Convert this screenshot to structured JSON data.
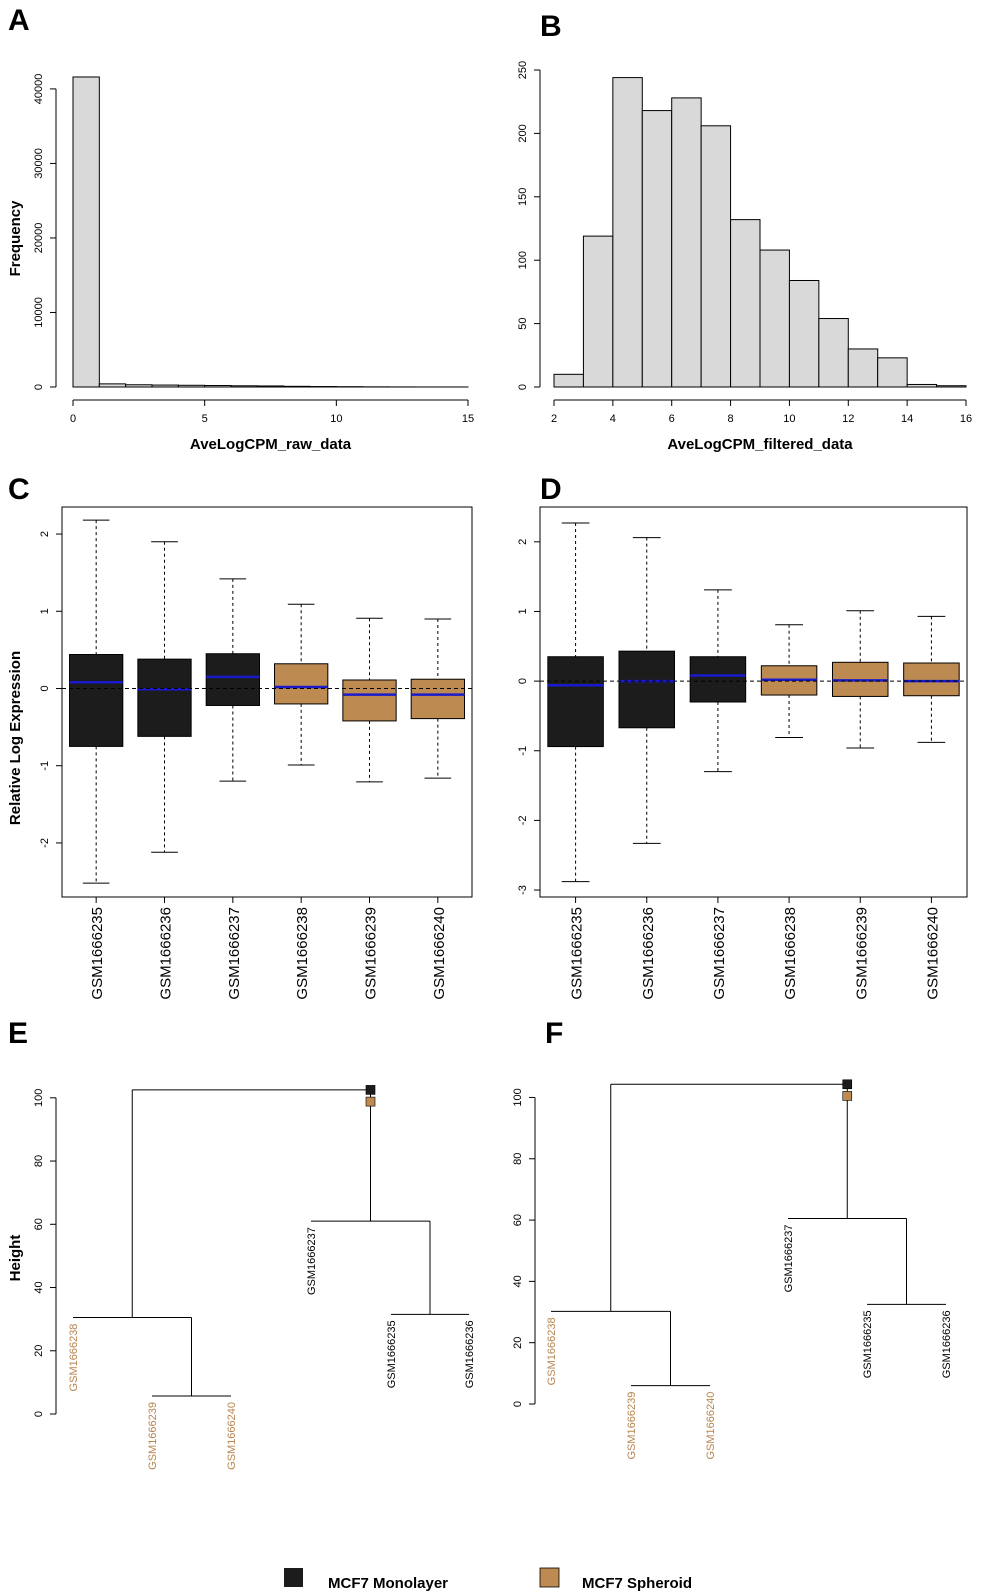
{
  "figure": {
    "colors": {
      "monolayer": "#1c1c1c",
      "spheroid": "#bd8a52",
      "hist_fill": "#d9d9d9",
      "median_line": "#1a1acc",
      "spheroid_label": "#b88650"
    },
    "legend": [
      {
        "label": "MCF7 Monolayer",
        "color": "#1c1c1c"
      },
      {
        "label": "MCF7 Spheroid",
        "color": "#bd8a52"
      }
    ]
  },
  "chart_data": [
    {
      "panel": "A",
      "type": "bar",
      "subtype": "histogram",
      "xlabel": "AveLogCPM_raw_data",
      "ylabel": "Frequency",
      "xlim": [
        0,
        15
      ],
      "ylim": [
        0,
        42000
      ],
      "xticks": [
        0,
        5,
        10,
        15
      ],
      "yticks": [
        0,
        10000,
        20000,
        30000,
        40000
      ],
      "bin_start": 0,
      "bin_width": 1,
      "values": [
        41600,
        420,
        300,
        260,
        230,
        200,
        160,
        140,
        90,
        60,
        40,
        20,
        10,
        5,
        3
      ]
    },
    {
      "panel": "B",
      "type": "bar",
      "subtype": "histogram",
      "xlabel": "AveLogCPM_filtered_data",
      "ylabel": "",
      "xlim": [
        2,
        16
      ],
      "ylim": [
        0,
        250
      ],
      "xticks": [
        2,
        4,
        6,
        8,
        10,
        12,
        14,
        16
      ],
      "yticks": [
        0,
        50,
        100,
        150,
        200,
        250
      ],
      "bin_start": 2,
      "bin_width": 1,
      "values": [
        10,
        119,
        244,
        218,
        228,
        206,
        132,
        108,
        84,
        54,
        30,
        23,
        2,
        1
      ]
    },
    {
      "panel": "C",
      "type": "box",
      "xlabel": "",
      "ylabel": "Relative Log Expression",
      "ylim": [
        -2.7,
        2.35
      ],
      "yticks": [
        -2,
        -1,
        0,
        1,
        2
      ],
      "reference_line": 0,
      "categories": [
        "GSM1666235",
        "GSM1666236",
        "GSM1666237",
        "GSM1666238",
        "GSM1666239",
        "GSM1666240"
      ],
      "groups": [
        "monolayer",
        "monolayer",
        "monolayer",
        "spheroid",
        "spheroid",
        "spheroid"
      ],
      "boxes": [
        {
          "min": -2.52,
          "q1": -0.75,
          "median": 0.08,
          "q3": 0.44,
          "max": 2.18
        },
        {
          "min": -2.12,
          "q1": -0.62,
          "median": -0.01,
          "q3": 0.38,
          "max": 1.9
        },
        {
          "min": -1.2,
          "q1": -0.22,
          "median": 0.15,
          "q3": 0.45,
          "max": 1.42
        },
        {
          "min": -0.99,
          "q1": -0.2,
          "median": 0.02,
          "q3": 0.32,
          "max": 1.09
        },
        {
          "min": -1.21,
          "q1": -0.42,
          "median": -0.08,
          "q3": 0.11,
          "max": 0.91
        },
        {
          "min": -1.16,
          "q1": -0.39,
          "median": -0.08,
          "q3": 0.12,
          "max": 0.9
        }
      ]
    },
    {
      "panel": "D",
      "type": "box",
      "xlabel": "",
      "ylabel": "",
      "ylim": [
        -3.1,
        2.5
      ],
      "yticks": [
        -3,
        -2,
        -1,
        0,
        1,
        2
      ],
      "reference_line": 0,
      "categories": [
        "GSM1666235",
        "GSM1666236",
        "GSM1666237",
        "GSM1666238",
        "GSM1666239",
        "GSM1666240"
      ],
      "groups": [
        "monolayer",
        "monolayer",
        "monolayer",
        "spheroid",
        "spheroid",
        "spheroid"
      ],
      "boxes": [
        {
          "min": -2.88,
          "q1": -0.94,
          "median": -0.06,
          "q3": 0.35,
          "max": 2.27
        },
        {
          "min": -2.33,
          "q1": -0.67,
          "median": 0.0,
          "q3": 0.43,
          "max": 2.06
        },
        {
          "min": -1.3,
          "q1": -0.3,
          "median": 0.08,
          "q3": 0.35,
          "max": 1.31
        },
        {
          "min": -0.81,
          "q1": -0.2,
          "median": 0.02,
          "q3": 0.22,
          "max": 0.81
        },
        {
          "min": -0.96,
          "q1": -0.22,
          "median": 0.01,
          "q3": 0.27,
          "max": 1.01
        },
        {
          "min": -0.88,
          "q1": -0.21,
          "median": 0.0,
          "q3": 0.26,
          "max": 0.93
        }
      ]
    },
    {
      "panel": "E",
      "type": "dendrogram",
      "ylabel": "Height",
      "ylim": [
        0,
        105
      ],
      "yticks": [
        0,
        20,
        40,
        60,
        80,
        100
      ],
      "leaves": [
        {
          "label": "GSM1666238",
          "group": "spheroid",
          "height": 30.5
        },
        {
          "label": "GSM1666239",
          "group": "spheroid",
          "height": 5.7
        },
        {
          "label": "GSM1666240",
          "group": "spheroid",
          "height": 5.7
        },
        {
          "label": "GSM1666237",
          "group": "monolayer",
          "height": 61
        },
        {
          "label": "GSM1666235",
          "group": "monolayer",
          "height": 31.5
        },
        {
          "label": "GSM1666236",
          "group": "monolayer",
          "height": 31.5
        }
      ],
      "merges": [
        {
          "a": 2,
          "b": 3,
          "height": 5.7
        },
        {
          "a": 1,
          "b": -1,
          "height": 30.5
        },
        {
          "a": 5,
          "b": 6,
          "height": 31.5
        },
        {
          "a": 4,
          "b": -3,
          "height": 61
        },
        {
          "a": -2,
          "b": -4,
          "height": 102.5
        }
      ],
      "root_markers": [
        {
          "group": "monolayer",
          "height": 102.5
        },
        {
          "group": "spheroid",
          "height": 98.8
        }
      ]
    },
    {
      "panel": "F",
      "type": "dendrogram",
      "ylabel": "",
      "ylim": [
        0,
        107
      ],
      "yticks": [
        0,
        20,
        40,
        60,
        80,
        100
      ],
      "leaves": [
        {
          "label": "GSM1666238",
          "group": "spheroid",
          "height": 30.2
        },
        {
          "label": "GSM1666239",
          "group": "spheroid",
          "height": 6
        },
        {
          "label": "GSM1666240",
          "group": "spheroid",
          "height": 6
        },
        {
          "label": "GSM1666237",
          "group": "monolayer",
          "height": 60.5
        },
        {
          "label": "GSM1666235",
          "group": "monolayer",
          "height": 32.5
        },
        {
          "label": "GSM1666236",
          "group": "monolayer",
          "height": 32.5
        }
      ],
      "merges": [
        {
          "a": 2,
          "b": 3,
          "height": 6
        },
        {
          "a": 1,
          "b": -1,
          "height": 30.2
        },
        {
          "a": 5,
          "b": 6,
          "height": 32.5
        },
        {
          "a": 4,
          "b": -3,
          "height": 60.5
        },
        {
          "a": -2,
          "b": -4,
          "height": 104.3
        }
      ],
      "root_markers": [
        {
          "group": "monolayer",
          "height": 104.3
        },
        {
          "group": "spheroid",
          "height": 100.5
        }
      ]
    }
  ]
}
